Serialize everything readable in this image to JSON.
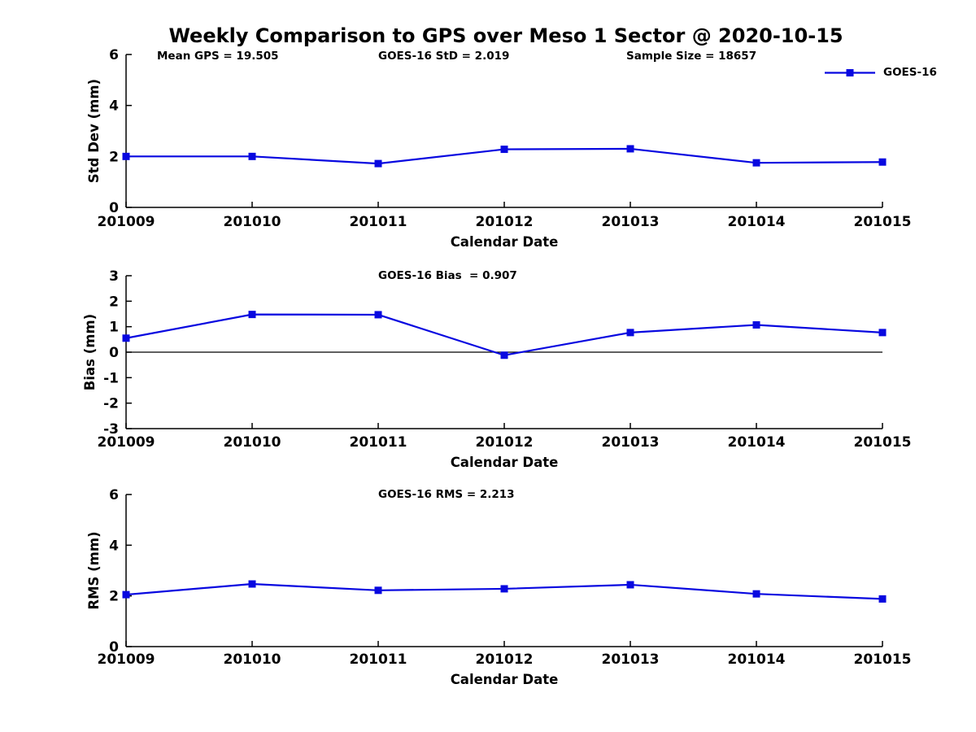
{
  "title": "Weekly Comparison to GPS over Meso 1 Sector @ 2020-10-15",
  "header_stats": {
    "mean_gps": "Mean GPS = 19.505",
    "goes16_std": "GOES-16 StD = 2.019",
    "sample_size": "Sample Size = 18657"
  },
  "legend": {
    "label": "GOES-16"
  },
  "colors": {
    "line": "#0808e0",
    "axis": "#000000",
    "zero_line": "#000000",
    "text": "#000000"
  },
  "chart_data": [
    {
      "type": "line",
      "annotation": "",
      "xlabel": "Calendar Date",
      "ylabel": "Std Dev (mm)",
      "categories": [
        "201009",
        "201010",
        "201011",
        "201012",
        "201013",
        "201014",
        "201015"
      ],
      "series": [
        {
          "name": "GOES-16",
          "values": [
            2.0,
            2.0,
            1.72,
            2.28,
            2.3,
            1.75,
            1.78
          ]
        }
      ],
      "ylim": [
        0,
        6
      ],
      "yticks": [
        0,
        2,
        4,
        6
      ],
      "zero_line": false,
      "grid": false,
      "legend_position": "top-right-outside",
      "marker": "square"
    },
    {
      "type": "line",
      "annotation": "GOES-16 Bias  = 0.907",
      "xlabel": "Calendar Date",
      "ylabel": "Bias (mm)",
      "categories": [
        "201009",
        "201010",
        "201011",
        "201012",
        "201013",
        "201014",
        "201015"
      ],
      "series": [
        {
          "name": "GOES-16",
          "values": [
            0.55,
            1.48,
            1.47,
            -0.12,
            0.77,
            1.07,
            0.77
          ]
        }
      ],
      "ylim": [
        -3,
        3
      ],
      "yticks": [
        -3,
        -2,
        -1,
        0,
        1,
        2,
        3
      ],
      "zero_line": true,
      "grid": false,
      "marker": "square"
    },
    {
      "type": "line",
      "annotation": "GOES-16 RMS = 2.213",
      "xlabel": "Calendar Date",
      "ylabel": "RMS (mm)",
      "categories": [
        "201009",
        "201010",
        "201011",
        "201012",
        "201013",
        "201014",
        "201015"
      ],
      "series": [
        {
          "name": "GOES-16",
          "values": [
            2.05,
            2.47,
            2.22,
            2.28,
            2.44,
            2.08,
            1.88
          ]
        }
      ],
      "ylim": [
        0,
        6
      ],
      "yticks": [
        0,
        2,
        4,
        6
      ],
      "zero_line": false,
      "grid": false,
      "marker": "square"
    }
  ]
}
